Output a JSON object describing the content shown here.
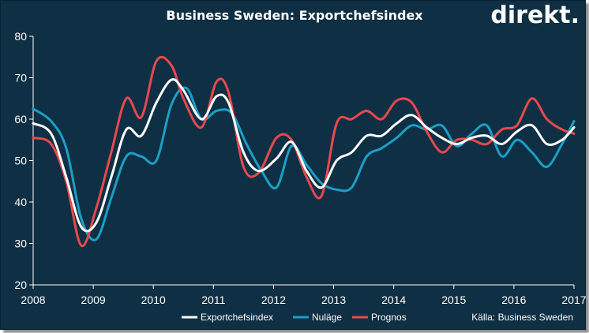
{
  "header": {
    "title": "Business Sweden: Exportchefsindex",
    "logo": "direkt."
  },
  "chart_data": {
    "type": "line",
    "title": "Business Sweden: Exportchefsindex",
    "source": "Källa: Business Sweden",
    "xlabel": "",
    "ylabel": "",
    "xlim": [
      2008,
      2017
    ],
    "ylim": [
      20,
      80
    ],
    "x_ticks": [
      "2008",
      "2009",
      "2010",
      "2011",
      "2012",
      "2013",
      "2014",
      "2015",
      "2016",
      "2017"
    ],
    "y_ticks": [
      "20",
      "30",
      "40",
      "50",
      "60",
      "70",
      "80"
    ],
    "legend_position": "bottom",
    "colors": {
      "background": "#0e2f44",
      "axis": "#ffffff"
    },
    "series": [
      {
        "name": "Exportchefsindex",
        "color": "#ffffff",
        "points": [
          [
            2008,
            59
          ],
          [
            2008.3,
            56.5
          ],
          [
            2008.55,
            46
          ],
          [
            2008.8,
            34
          ],
          [
            2009.05,
            35
          ],
          [
            2009.3,
            46
          ],
          [
            2009.55,
            57.5
          ],
          [
            2009.8,
            56
          ],
          [
            2010.05,
            64
          ],
          [
            2010.3,
            69.5
          ],
          [
            2010.5,
            67
          ],
          [
            2010.8,
            60
          ],
          [
            2011.05,
            65.5
          ],
          [
            2011.25,
            64
          ],
          [
            2011.5,
            52
          ],
          [
            2011.75,
            47.5
          ],
          [
            2012.05,
            50.5
          ],
          [
            2012.3,
            54.5
          ],
          [
            2012.55,
            47.5
          ],
          [
            2012.8,
            43.5
          ],
          [
            2013.05,
            50
          ],
          [
            2013.3,
            52
          ],
          [
            2013.55,
            56
          ],
          [
            2013.8,
            56
          ],
          [
            2014.05,
            59
          ],
          [
            2014.3,
            61
          ],
          [
            2014.55,
            58
          ],
          [
            2014.8,
            55.5
          ],
          [
            2015.05,
            54
          ],
          [
            2015.3,
            55.5
          ],
          [
            2015.55,
            56
          ],
          [
            2015.8,
            54
          ],
          [
            2016.05,
            57
          ],
          [
            2016.3,
            58.5
          ],
          [
            2016.55,
            54
          ],
          [
            2016.8,
            55
          ],
          [
            2017,
            58
          ]
        ]
      },
      {
        "name": "Nuläge",
        "color": "#1b9fc6",
        "points": [
          [
            2008,
            62.5
          ],
          [
            2008.3,
            59.5
          ],
          [
            2008.55,
            53
          ],
          [
            2008.8,
            36
          ],
          [
            2009.05,
            31
          ],
          [
            2009.3,
            41
          ],
          [
            2009.55,
            51
          ],
          [
            2009.8,
            51
          ],
          [
            2010.05,
            50
          ],
          [
            2010.3,
            63.5
          ],
          [
            2010.55,
            67.5
          ],
          [
            2010.8,
            60
          ],
          [
            2011.05,
            62
          ],
          [
            2011.3,
            61.5
          ],
          [
            2011.55,
            54
          ],
          [
            2011.8,
            47.5
          ],
          [
            2012.05,
            43.5
          ],
          [
            2012.3,
            53.5
          ],
          [
            2012.55,
            49
          ],
          [
            2012.8,
            44.5
          ],
          [
            2013.05,
            43
          ],
          [
            2013.3,
            43.5
          ],
          [
            2013.55,
            51
          ],
          [
            2013.8,
            53
          ],
          [
            2014.05,
            55.5
          ],
          [
            2014.3,
            58.5
          ],
          [
            2014.55,
            57.5
          ],
          [
            2014.8,
            58.5
          ],
          [
            2015.05,
            53.5
          ],
          [
            2015.3,
            56.5
          ],
          [
            2015.55,
            58.5
          ],
          [
            2015.8,
            51
          ],
          [
            2016.05,
            55
          ],
          [
            2016.3,
            52
          ],
          [
            2016.55,
            48.5
          ],
          [
            2016.8,
            54
          ],
          [
            2017,
            59.5
          ]
        ]
      },
      {
        "name": "Prognos",
        "color": "#e8494d",
        "points": [
          [
            2008,
            55.5
          ],
          [
            2008.3,
            54
          ],
          [
            2008.55,
            45
          ],
          [
            2008.8,
            29.5
          ],
          [
            2009.05,
            38.5
          ],
          [
            2009.3,
            52
          ],
          [
            2009.55,
            65
          ],
          [
            2009.8,
            60.5
          ],
          [
            2010.05,
            74
          ],
          [
            2010.3,
            73
          ],
          [
            2010.5,
            65
          ],
          [
            2010.8,
            58
          ],
          [
            2011.05,
            69
          ],
          [
            2011.25,
            66.5
          ],
          [
            2011.5,
            48.5
          ],
          [
            2011.75,
            47
          ],
          [
            2012.05,
            55.5
          ],
          [
            2012.3,
            55
          ],
          [
            2012.55,
            46
          ],
          [
            2012.8,
            41.5
          ],
          [
            2013.05,
            59
          ],
          [
            2013.3,
            60
          ],
          [
            2013.55,
            62
          ],
          [
            2013.8,
            60
          ],
          [
            2014.05,
            64.5
          ],
          [
            2014.3,
            64
          ],
          [
            2014.55,
            57
          ],
          [
            2014.8,
            52
          ],
          [
            2015.05,
            55
          ],
          [
            2015.3,
            55
          ],
          [
            2015.55,
            54
          ],
          [
            2015.8,
            57.5
          ],
          [
            2016.05,
            58.5
          ],
          [
            2016.3,
            65
          ],
          [
            2016.55,
            60
          ],
          [
            2016.8,
            57.5
          ],
          [
            2017,
            56.5
          ]
        ]
      }
    ]
  }
}
